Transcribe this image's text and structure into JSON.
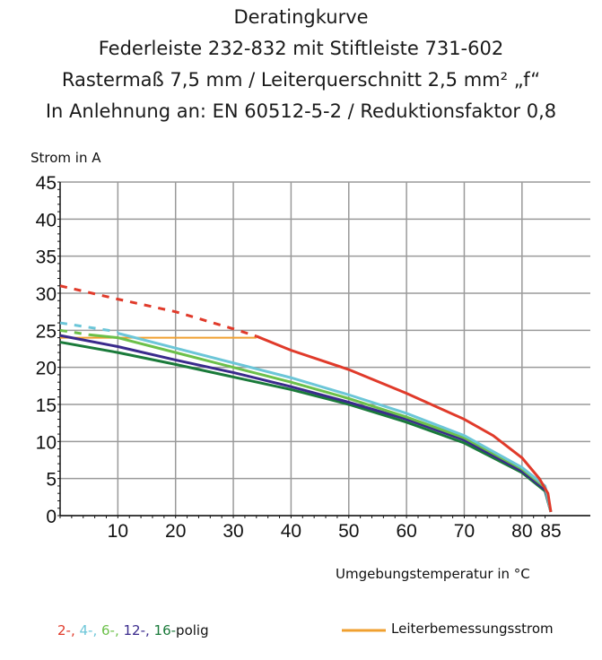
{
  "chart_data": {
    "type": "line",
    "title": [
      "Deratingkurve",
      "Federleiste 232-832 mit Stiftleiste 731-602",
      "Rastermaß 7,5 mm / Leiterquerschnitt 2,5 mm² „f“",
      "In Anlehnung an: EN 60512-5-2 / Reduktionsfaktor 0,8"
    ],
    "ylabel": "Strom in A",
    "xlabel": "Umgebungstemperatur in °C",
    "xlim": [
      0,
      85
    ],
    "ylim": [
      0,
      45
    ],
    "xticks": [
      10,
      20,
      30,
      40,
      50,
      60,
      70,
      80,
      85
    ],
    "yticks": [
      0,
      5,
      10,
      15,
      20,
      25,
      30,
      35,
      40,
      45
    ],
    "grid": true,
    "legend": {
      "poles": [
        {
          "text": "2-,",
          "color": "#e03a2a"
        },
        {
          "text": "4-,",
          "color": "#6cc6d8"
        },
        {
          "text": "6-,",
          "color": "#6cc04a"
        },
        {
          "text": "12-,",
          "color": "#3a2a8c"
        },
        {
          "text": "16-",
          "color": "#1a7a3a"
        }
      ],
      "poles_suffix": "polig",
      "rated": "Leiterbemessungsstrom",
      "rated_color": "#f0a030",
      "placement": "bottom"
    },
    "series": [
      {
        "key": "2",
        "color": "#e03a2a",
        "dashed": [
          [
            0,
            31
          ],
          [
            10,
            29.2
          ],
          [
            20,
            27.5
          ],
          [
            30,
            25.2
          ],
          [
            34,
            24.2
          ]
        ],
        "solid": [
          [
            34,
            24.2
          ],
          [
            40,
            22.3
          ],
          [
            50,
            19.7
          ],
          [
            60,
            16.5
          ],
          [
            70,
            13
          ],
          [
            75,
            10.8
          ],
          [
            80,
            7.8
          ],
          [
            83,
            5
          ],
          [
            84.5,
            3
          ],
          [
            85,
            0.5
          ]
        ]
      },
      {
        "key": "4",
        "color": "#6cc6d8",
        "dashed": [
          [
            0,
            26
          ],
          [
            10,
            24.8
          ]
        ],
        "solid": [
          [
            10,
            24.6
          ],
          [
            20,
            22.6
          ],
          [
            30,
            20.6
          ],
          [
            40,
            18.6
          ],
          [
            50,
            16.3
          ],
          [
            60,
            13.8
          ],
          [
            70,
            10.8
          ],
          [
            80,
            6.5
          ],
          [
            84,
            4
          ],
          [
            85,
            0.5
          ]
        ]
      },
      {
        "key": "6",
        "color": "#6cc04a",
        "dashed": [
          [
            0,
            25
          ],
          [
            5,
            24.4
          ]
        ],
        "solid": [
          [
            5,
            24.4
          ],
          [
            10,
            24
          ],
          [
            20,
            22
          ],
          [
            30,
            20
          ],
          [
            40,
            18
          ],
          [
            50,
            15.8
          ],
          [
            60,
            13.3
          ],
          [
            70,
            10.5
          ],
          [
            80,
            6.3
          ],
          [
            84,
            3.8
          ],
          [
            85,
            0.5
          ]
        ]
      },
      {
        "key": "12",
        "color": "#3a2a8c",
        "solid": [
          [
            0,
            24.3
          ],
          [
            10,
            22.8
          ],
          [
            20,
            21
          ],
          [
            30,
            19.3
          ],
          [
            40,
            17.4
          ],
          [
            50,
            15.3
          ],
          [
            60,
            13
          ],
          [
            70,
            10.2
          ],
          [
            80,
            6
          ],
          [
            84,
            3.5
          ],
          [
            85,
            0.5
          ]
        ]
      },
      {
        "key": "16",
        "color": "#1a7a3a",
        "solid": [
          [
            0,
            23.4
          ],
          [
            10,
            22
          ],
          [
            20,
            20.4
          ],
          [
            30,
            18.7
          ],
          [
            40,
            17
          ],
          [
            50,
            15
          ],
          [
            60,
            12.6
          ],
          [
            70,
            9.8
          ],
          [
            80,
            5.8
          ],
          [
            84,
            3.3
          ],
          [
            85,
            0.5
          ]
        ]
      },
      {
        "key": "rated",
        "color": "#f0a030",
        "solid": [
          [
            0,
            24
          ],
          [
            34,
            24
          ]
        ]
      }
    ]
  }
}
